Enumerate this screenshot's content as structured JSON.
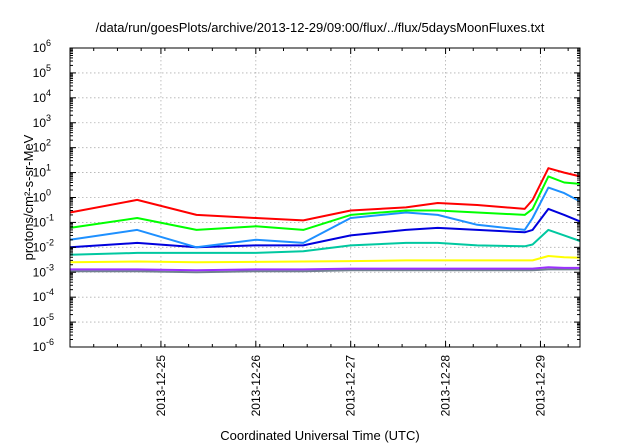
{
  "chart_data": {
    "type": "line",
    "title": "/data/run/goesPlots/archive/2013-12-29/09:00/flux/../flux/5daysMoonFluxes.txt",
    "xlabel": "Coordinated Universal Time (UTC)",
    "ylabel": "protons/cm²-s-sr-MeV",
    "yscale": "log",
    "ylim": [
      1e-06,
      1000000.0
    ],
    "xlim": [
      "2013-12-24 01:00",
      "2013-12-29 10:00"
    ],
    "ytick_labels": [
      "10-6",
      "10-5",
      "10-4",
      "10-3",
      "10-2",
      "10-1",
      "100",
      "101",
      "102",
      "103",
      "104",
      "105",
      "106"
    ],
    "xticks": [
      "2013-12-25",
      "2013-12-26",
      "2013-12-27",
      "2013-12-28",
      "2013-12-29"
    ],
    "grid": true,
    "series": [
      {
        "color": "#ff0000",
        "x": [
          "2013-12-24 01:00",
          "2013-12-24 18:00",
          "2013-12-25 09:00",
          "2013-12-26 00:00",
          "2013-12-26 12:00",
          "2013-12-27 00:00",
          "2013-12-27 14:00",
          "2013-12-27 22:00",
          "2013-12-28 08:00",
          "2013-12-28 20:00",
          "2013-12-28 22:00",
          "2013-12-29 02:00",
          "2013-12-29 06:00",
          "2013-12-29 10:00"
        ],
        "y": [
          0.25,
          0.8,
          0.2,
          0.15,
          0.12,
          0.3,
          0.4,
          0.6,
          0.5,
          0.35,
          0.8,
          15,
          10,
          7
        ]
      },
      {
        "color": "#00ff00",
        "x": [
          "2013-12-24 01:00",
          "2013-12-24 18:00",
          "2013-12-25 09:00",
          "2013-12-26 00:00",
          "2013-12-26 12:00",
          "2013-12-27 00:00",
          "2013-12-27 14:00",
          "2013-12-27 22:00",
          "2013-12-28 08:00",
          "2013-12-28 20:00",
          "2013-12-28 22:00",
          "2013-12-29 02:00",
          "2013-12-29 06:00",
          "2013-12-29 10:00"
        ],
        "y": [
          0.06,
          0.15,
          0.05,
          0.07,
          0.05,
          0.2,
          0.3,
          0.3,
          0.25,
          0.2,
          0.35,
          7,
          4,
          3.5
        ]
      },
      {
        "color": "#1e90ff",
        "x": [
          "2013-12-24 01:00",
          "2013-12-24 18:00",
          "2013-12-25 09:00",
          "2013-12-26 00:00",
          "2013-12-26 12:00",
          "2013-12-27 00:00",
          "2013-12-27 14:00",
          "2013-12-27 22:00",
          "2013-12-28 08:00",
          "2013-12-28 20:00",
          "2013-12-28 22:00",
          "2013-12-29 02:00",
          "2013-12-29 06:00",
          "2013-12-29 10:00"
        ],
        "y": [
          0.02,
          0.05,
          0.01,
          0.02,
          0.015,
          0.15,
          0.25,
          0.2,
          0.08,
          0.05,
          0.15,
          2.5,
          1.5,
          0.7
        ]
      },
      {
        "color": "#0000dd",
        "x": [
          "2013-12-24 01:00",
          "2013-12-24 18:00",
          "2013-12-25 09:00",
          "2013-12-26 00:00",
          "2013-12-26 12:00",
          "2013-12-27 00:00",
          "2013-12-27 14:00",
          "2013-12-27 22:00",
          "2013-12-28 08:00",
          "2013-12-28 20:00",
          "2013-12-28 22:00",
          "2013-12-29 02:00",
          "2013-12-29 06:00",
          "2013-12-29 10:00"
        ],
        "y": [
          0.01,
          0.015,
          0.01,
          0.012,
          0.012,
          0.03,
          0.05,
          0.06,
          0.05,
          0.04,
          0.05,
          0.35,
          0.2,
          0.11
        ]
      },
      {
        "color": "#00c8a0",
        "x": [
          "2013-12-24 01:00",
          "2013-12-24 18:00",
          "2013-12-25 09:00",
          "2013-12-26 00:00",
          "2013-12-26 12:00",
          "2013-12-27 00:00",
          "2013-12-27 14:00",
          "2013-12-27 22:00",
          "2013-12-28 08:00",
          "2013-12-28 20:00",
          "2013-12-28 22:00",
          "2013-12-29 02:00",
          "2013-12-29 06:00",
          "2013-12-29 10:00"
        ],
        "y": [
          0.005,
          0.006,
          0.006,
          0.006,
          0.007,
          0.012,
          0.015,
          0.015,
          0.012,
          0.011,
          0.013,
          0.05,
          0.03,
          0.018
        ]
      },
      {
        "color": "#ffff00",
        "x": [
          "2013-12-24 01:00",
          "2013-12-24 18:00",
          "2013-12-25 09:00",
          "2013-12-26 00:00",
          "2013-12-26 12:00",
          "2013-12-27 00:00",
          "2013-12-27 14:00",
          "2013-12-27 22:00",
          "2013-12-28 08:00",
          "2013-12-28 20:00",
          "2013-12-28 22:00",
          "2013-12-29 02:00",
          "2013-12-29 06:00",
          "2013-12-29 10:00"
        ],
        "y": [
          0.0025,
          0.0027,
          0.0025,
          0.0026,
          0.0027,
          0.0028,
          0.003,
          0.003,
          0.003,
          0.003,
          0.003,
          0.0045,
          0.004,
          0.0038
        ]
      },
      {
        "color": "#9b30ff",
        "x": [
          "2013-12-24 01:00",
          "2013-12-24 18:00",
          "2013-12-25 09:00",
          "2013-12-26 00:00",
          "2013-12-26 12:00",
          "2013-12-27 00:00",
          "2013-12-27 14:00",
          "2013-12-27 22:00",
          "2013-12-28 08:00",
          "2013-12-28 20:00",
          "2013-12-28 22:00",
          "2013-12-29 02:00",
          "2013-12-29 06:00",
          "2013-12-29 10:00"
        ],
        "y": [
          0.0013,
          0.0013,
          0.0012,
          0.0013,
          0.0013,
          0.0014,
          0.0014,
          0.0014,
          0.0014,
          0.0014,
          0.0014,
          0.0016,
          0.0015,
          0.0015
        ]
      },
      {
        "color": "#708090",
        "x": [
          "2013-12-24 01:00",
          "2013-12-24 18:00",
          "2013-12-25 09:00",
          "2013-12-26 00:00",
          "2013-12-26 12:00",
          "2013-12-27 00:00",
          "2013-12-27 14:00",
          "2013-12-27 22:00",
          "2013-12-28 08:00",
          "2013-12-28 20:00",
          "2013-12-28 22:00",
          "2013-12-29 02:00",
          "2013-12-29 06:00",
          "2013-12-29 10:00"
        ],
        "y": [
          0.0011,
          0.0011,
          0.001,
          0.0011,
          0.0011,
          0.0012,
          0.0012,
          0.0012,
          0.0012,
          0.0012,
          0.0012,
          0.0013,
          0.0013,
          0.0013
        ]
      }
    ]
  }
}
